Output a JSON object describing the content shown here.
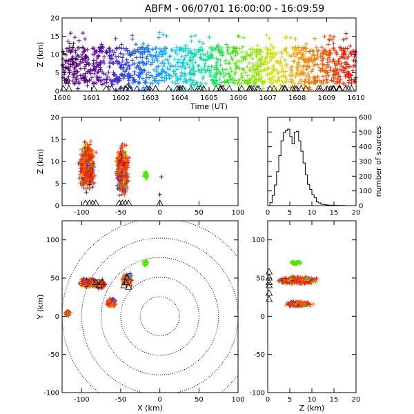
{
  "title": "ABFM - 06/07/01 16:00:00 - 16:09:59",
  "chart_data": [
    {
      "id": "time_height",
      "type": "scatter",
      "xlabel": "Time (UT)",
      "ylabel": "Z (km)",
      "xlim": [
        1600,
        1610
      ],
      "ylim": [
        0,
        20
      ],
      "xticks": [
        "1600",
        "1601",
        "1602",
        "1603",
        "1604",
        "1605",
        "1606",
        "1607",
        "1608",
        "1609",
        "1610"
      ],
      "yticks": [
        "0",
        "5",
        "10",
        "15",
        "20"
      ],
      "color_by": "time",
      "typical_altitude_range_km": [
        2,
        12
      ],
      "max_altitude_km": 16,
      "station_markers": "triangles at Z = 0"
    },
    {
      "id": "xz_projection",
      "type": "scatter",
      "xlabel": "",
      "ylabel": "Z (km)",
      "xlim": [
        -125,
        100
      ],
      "ylim": [
        0,
        20
      ],
      "xticks": [
        "-100",
        "-50",
        "0",
        "50",
        "100"
      ],
      "yticks": [
        "0",
        "5",
        "10",
        "15",
        "20"
      ],
      "clusters": [
        {
          "x_range_km": [
            -110,
            -75
          ],
          "z_range_km": [
            0,
            16
          ]
        },
        {
          "x_range_km": [
            -60,
            -35
          ],
          "z_range_km": [
            0,
            16
          ]
        },
        {
          "x_range_km": [
            -20,
            -15
          ],
          "z_range_km": [
            6,
            8
          ]
        }
      ],
      "isolated_sources": [
        {
          "x": 2,
          "z": 6.5
        },
        {
          "x": 0,
          "z": 2.5
        }
      ]
    },
    {
      "id": "altitude_histogram",
      "type": "line",
      "xlabel": "",
      "ylabel": "number of sources",
      "xlim": [
        0,
        20
      ],
      "ylim": [
        0,
        600
      ],
      "xticks": [
        "0",
        "5",
        "10",
        "15",
        "20"
      ],
      "yticks": [
        "0",
        "100",
        "200",
        "300",
        "400",
        "500",
        "600"
      ],
      "x": [
        0,
        0.5,
        1,
        1.5,
        2,
        2.5,
        3,
        3.5,
        4,
        4.5,
        5,
        5.5,
        6,
        6.5,
        7,
        7.5,
        8,
        8.5,
        9,
        9.5,
        10,
        10.5,
        11,
        11.5,
        12,
        12.5,
        13,
        13.5,
        14,
        14.5,
        15,
        15.5,
        16,
        16.5,
        17,
        17.5,
        18,
        18.5,
        19,
        19.5
      ],
      "values": [
        0,
        20,
        70,
        140,
        230,
        340,
        440,
        495,
        510,
        520,
        470,
        420,
        500,
        505,
        440,
        370,
        290,
        210,
        145,
        110,
        75,
        55,
        25,
        18,
        10,
        8,
        5,
        4,
        3,
        3,
        2,
        2,
        1,
        1,
        1,
        0,
        0,
        0,
        0,
        0
      ]
    },
    {
      "id": "plan_view",
      "type": "scatter",
      "xlabel": "X (km)",
      "ylabel": "Y (km)",
      "xlim": [
        -125,
        100
      ],
      "ylim": [
        -100,
        125
      ],
      "xticks": [
        "-100",
        "-50",
        "0",
        "50",
        "100"
      ],
      "yticks": [
        "-100",
        "-50",
        "0",
        "50",
        "100"
      ],
      "range_rings_km": [
        25,
        50,
        75,
        100,
        125
      ],
      "clusters": [
        {
          "x_range_km": [
            -110,
            -65
          ],
          "y_range_km": [
            25,
            55
          ]
        },
        {
          "x_range_km": [
            -70,
            -55
          ],
          "y_range_km": [
            10,
            25
          ]
        },
        {
          "x_range_km": [
            -50,
            -35
          ],
          "y_range_km": [
            35,
            60
          ]
        },
        {
          "x_range_km": [
            -25,
            -15
          ],
          "y_range_km": [
            65,
            75
          ]
        },
        {
          "x_range_km": [
            -125,
            -110
          ],
          "y_range_km": [
            0,
            10
          ]
        }
      ]
    },
    {
      "id": "yz_projection",
      "type": "scatter",
      "xlabel": "Z (km)",
      "ylabel": "",
      "xlim": [
        0,
        20
      ],
      "ylim": [
        -100,
        125
      ],
      "xticks": [
        "0",
        "5",
        "10",
        "15",
        "20"
      ],
      "yticks": [
        "-100",
        "-50",
        "0",
        "50",
        "100"
      ],
      "clusters": [
        {
          "z_range_km": [
            0,
            16
          ],
          "y_range_km": [
            35,
            60
          ]
        },
        {
          "z_range_km": [
            2,
            13
          ],
          "y_range_km": [
            5,
            25
          ]
        },
        {
          "z_range_km": [
            5,
            9
          ],
          "y_range_km": [
            65,
            75
          ]
        }
      ]
    }
  ]
}
